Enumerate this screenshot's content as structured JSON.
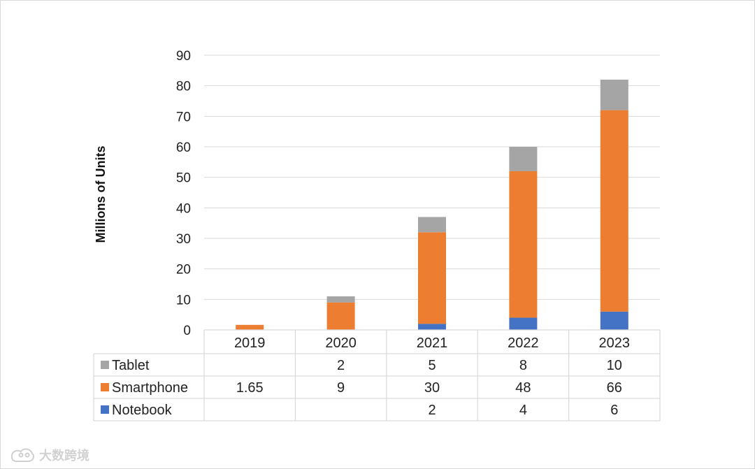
{
  "chart_data": {
    "type": "bar",
    "stacked": true,
    "categories": [
      "2019",
      "2020",
      "2021",
      "2022",
      "2023"
    ],
    "ylabel": "Millions of Units",
    "ylim": [
      0,
      90
    ],
    "yticks": [
      0,
      10,
      20,
      30,
      40,
      50,
      60,
      70,
      80,
      90
    ],
    "grid": true,
    "legend": "data-table-left",
    "series": [
      {
        "name": "Notebook",
        "color": "#4472c4",
        "values": [
          null,
          null,
          2,
          4,
          6
        ],
        "labels": [
          "",
          "",
          "2",
          "4",
          "6"
        ]
      },
      {
        "name": "Smartphone",
        "color": "#ed7d31",
        "values": [
          1.65,
          9,
          30,
          48,
          66
        ],
        "labels": [
          "1.65",
          "9",
          "30",
          "48",
          "66"
        ]
      },
      {
        "name": "Tablet",
        "color": "#a5a5a5",
        "values": [
          null,
          2,
          5,
          8,
          10
        ],
        "labels": [
          "",
          "2",
          "5",
          "8",
          "10"
        ]
      }
    ],
    "table_row_order": [
      "Tablet",
      "Smartphone",
      "Notebook"
    ]
  },
  "watermark": {
    "icon": "tiger-logo-icon",
    "text": "大数跨境"
  }
}
